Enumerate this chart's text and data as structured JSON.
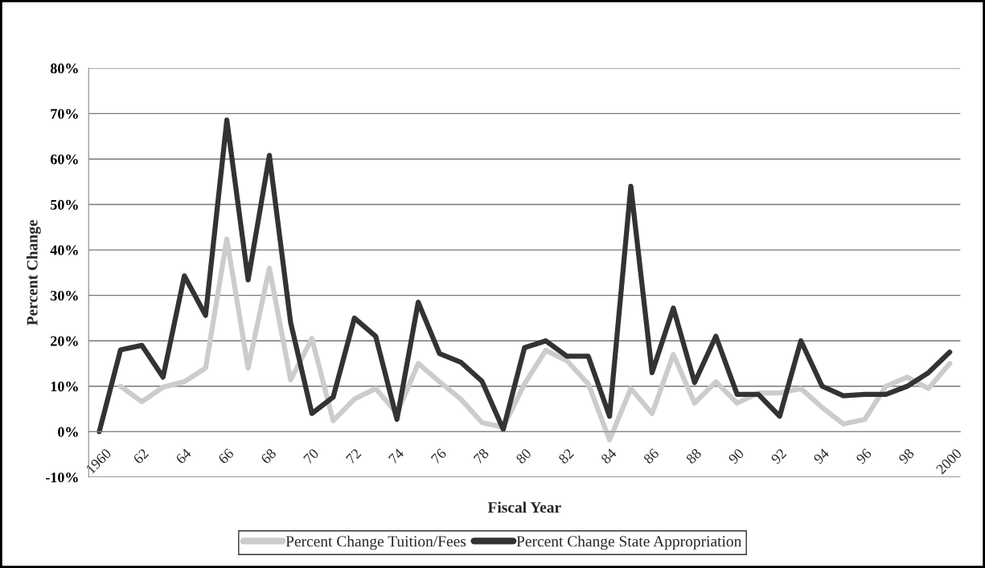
{
  "chart_data": {
    "type": "line",
    "xlabel": "Fiscal Year",
    "ylabel": "Percent Change",
    "categories": [
      "1960",
      null,
      "62",
      null,
      "64",
      null,
      "66",
      null,
      "68",
      null,
      "70",
      null,
      "72",
      null,
      "74",
      null,
      "76",
      null,
      "78",
      null,
      "80",
      null,
      "82",
      null,
      "84",
      null,
      "86",
      null,
      "88",
      null,
      "90",
      null,
      "92",
      null,
      "94",
      null,
      "96",
      null,
      "98",
      null,
      "2000"
    ],
    "series": [
      {
        "name": "Percent Change Tuition/Fees",
        "color": "#cccccc",
        "values": [
          null,
          10,
          6.6,
          9.8,
          11,
          14,
          42.4,
          14,
          36,
          11.4,
          20.5,
          2.4,
          7.2,
          9.5,
          4,
          15,
          11,
          7.2,
          2,
          1,
          10.5,
          17.9,
          15.6,
          10.5,
          -1.8,
          9.5,
          4,
          17,
          6.3,
          11,
          6.3,
          8.5,
          8.5,
          9.5,
          5.3,
          1.7,
          2.7,
          10,
          12,
          9.5,
          15
        ]
      },
      {
        "name": "Percent Change State Appropriation",
        "color": "#333333",
        "values": [
          0,
          18,
          19,
          12,
          34.3,
          25.6,
          68.6,
          33.4,
          60.8,
          24,
          4,
          7.6,
          25,
          21,
          2.7,
          28.5,
          17.2,
          15.3,
          11.1,
          0.5,
          18.5,
          20,
          16.6,
          16.6,
          3.4,
          54,
          13,
          27.2,
          10.8,
          21,
          8.2,
          8.2,
          3.4,
          20,
          10,
          7.9,
          8.2,
          8.2,
          10,
          13,
          17.5
        ]
      }
    ],
    "ylim": [
      -10,
      80
    ],
    "yticks": [
      {
        "value": -10,
        "label": "-10%"
      },
      {
        "value": 0,
        "label": "0%"
      },
      {
        "value": 10,
        "label": "10%"
      },
      {
        "value": 20,
        "label": "20%"
      },
      {
        "value": 30,
        "label": "30%"
      },
      {
        "value": 40,
        "label": "40%"
      },
      {
        "value": 50,
        "label": "50%"
      },
      {
        "value": 60,
        "label": "60%"
      },
      {
        "value": 70,
        "label": "70%"
      },
      {
        "value": 80,
        "label": "80%"
      }
    ],
    "grid": "y",
    "legend": "bottom",
    "marker": "none",
    "line_style": "solid"
  }
}
